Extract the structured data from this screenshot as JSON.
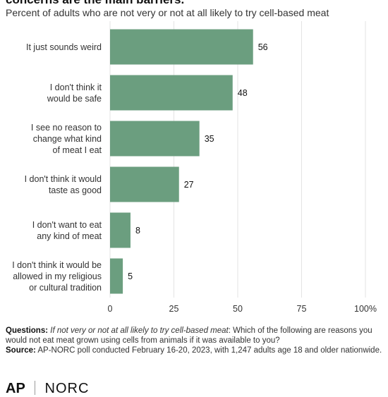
{
  "header": {
    "title": "concerns are the main barriers.",
    "subtitle": "Percent of adults who are not very or not at all likely to try cell-based meat"
  },
  "chart_data": {
    "type": "bar",
    "orientation": "horizontal",
    "categories": [
      [
        "It just sounds weird"
      ],
      [
        "I don't think it",
        "would be safe"
      ],
      [
        "I see no reason to",
        "change what kind",
        "of meat I eat"
      ],
      [
        "I don't think it would",
        "taste as good"
      ],
      [
        "I don't want to eat",
        "any kind of meat"
      ],
      [
        "I don't think it would be",
        "allowed in my religious",
        "or cultural tradition"
      ]
    ],
    "values": [
      56,
      48,
      35,
      27,
      8,
      5
    ],
    "value_labels": [
      "56",
      "48",
      "35",
      "27",
      "8",
      "5"
    ],
    "xlim": [
      0,
      100
    ],
    "xticks": [
      0,
      25,
      50,
      75,
      100
    ],
    "xtick_labels": [
      "0",
      "25",
      "50",
      "75",
      "100%"
    ],
    "grid": true,
    "bar_color": "#6b9e7f",
    "grid_color": "#e3e3e3"
  },
  "notes": {
    "questions_label": "Questions:",
    "questions_italic": "If not very or not at all likely to try cell-based meat",
    "questions_text": ": Which of the following are reasons you would not eat meat grown using cells from animals if it was available to you?",
    "source_label": "Source:",
    "source_text": " AP-NORC poll conducted February 16-20, 2023, with 1,247 adults age 18 and older nationwide."
  },
  "footer": {
    "logo_ap": "AP",
    "logo_norc": "NORC"
  }
}
